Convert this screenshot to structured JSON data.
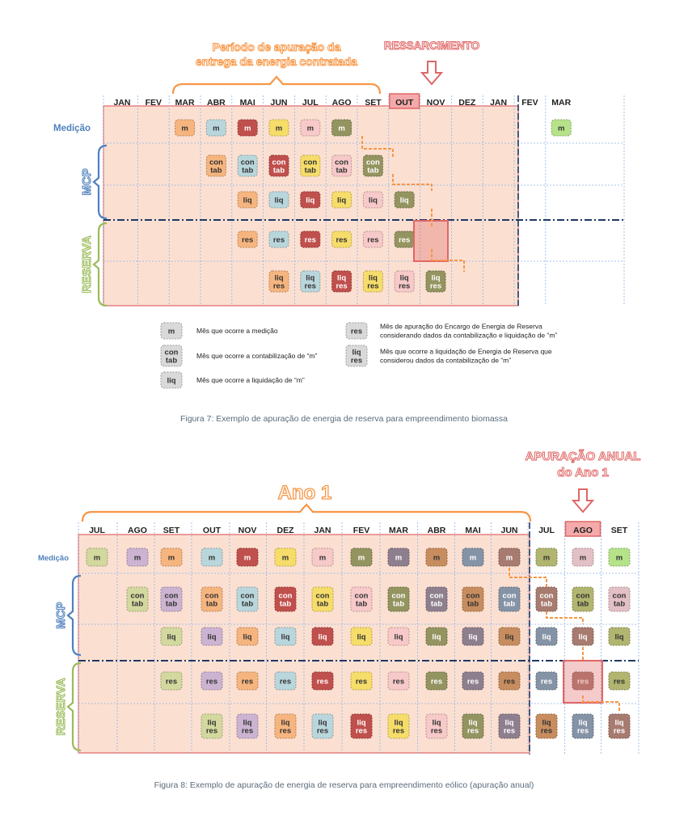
{
  "figure7": {
    "top_title": [
      "Período de apuração da",
      "entrega da energia contratada"
    ],
    "highlight_label": "RESSARCIMENTO",
    "months": [
      "JAN",
      "FEV",
      "MAR",
      "ABR",
      "MAI",
      "JUN",
      "JUL",
      "AGO",
      "SET",
      "OUT",
      "NOV",
      "DEZ",
      "JAN",
      "FEV",
      "MAR"
    ],
    "highlight_month_index": 9,
    "row_labels": {
      "medicao": "Medição",
      "mcp": "MCP",
      "reserva": "RESERVA"
    },
    "rows": {
      "m": [
        null,
        null,
        [
          "m",
          "#f6b57f"
        ],
        [
          "m",
          "#b9d6dc"
        ],
        [
          "m",
          "#c0504d"
        ],
        [
          "m",
          "#f6dd6a"
        ],
        [
          "m",
          "#f7c9c9"
        ],
        [
          "m",
          "#939460"
        ],
        null,
        null,
        null,
        null,
        null,
        null,
        [
          "m",
          "#b6e38a"
        ]
      ],
      "con": [
        null,
        null,
        null,
        [
          "con tab",
          "#f6b57f"
        ],
        [
          "con tab",
          "#b9d6dc"
        ],
        [
          "con tab",
          "#c0504d"
        ],
        [
          "con tab",
          "#f6dd6a"
        ],
        [
          "con tab",
          "#f7c9c9"
        ],
        [
          "con tab",
          "#939460"
        ],
        null,
        null,
        null,
        null,
        null,
        null
      ],
      "liq": [
        null,
        null,
        null,
        null,
        [
          "liq",
          "#f6b57f"
        ],
        [
          "liq",
          "#b9d6dc"
        ],
        [
          "liq",
          "#c0504d"
        ],
        [
          "liq",
          "#f6dd6a"
        ],
        [
          "liq",
          "#f7c9c9"
        ],
        [
          "liq",
          "#939460"
        ],
        null,
        null,
        null,
        null,
        null
      ],
      "res": [
        null,
        null,
        null,
        null,
        [
          "res",
          "#f6b57f"
        ],
        [
          "res",
          "#b9d6dc"
        ],
        [
          "res",
          "#c0504d"
        ],
        [
          "res",
          "#f6dd6a"
        ],
        [
          "res",
          "#f7c9c9"
        ],
        [
          "res",
          "#939460"
        ],
        null,
        null,
        null,
        null,
        null
      ],
      "liqres": [
        null,
        null,
        null,
        null,
        null,
        [
          "liq res",
          "#f6b57f"
        ],
        [
          "liq res",
          "#b9d6dc"
        ],
        [
          "liq res",
          "#c0504d"
        ],
        [
          "liq res",
          "#f6dd6a"
        ],
        [
          "liq res",
          "#f7c9c9"
        ],
        [
          "liq res",
          "#939460"
        ],
        null,
        null,
        null,
        null
      ]
    },
    "legend": [
      {
        "box": "m",
        "text": [
          "Mês que ocorre a medição"
        ]
      },
      {
        "box": "con tab",
        "text": [
          "Mês que ocorre a contabilização de “m”"
        ]
      },
      {
        "box": "liq",
        "text": [
          "Mês que ocorre a liquidação de “m”"
        ]
      },
      {
        "box": "res",
        "text": [
          "Mês  de apuração do Encargo de Energia de Reserva",
          "considerando dados da contabilização e liquidação de “m”"
        ]
      },
      {
        "box": "liq res",
        "text": [
          "Mês  que ocorre a liquidação de Energia de Reserva que",
          "considerou dados da contabilização de “m”"
        ]
      }
    ],
    "caption": "Figura 7: Exemplo de apuração de energia de reserva para empreendimento biomassa"
  },
  "figure8": {
    "top_title": "Ano 1",
    "highlight_label": [
      "APURAÇÃO ANUAL",
      "do Ano 1"
    ],
    "months": [
      "JUL",
      "AGO",
      "SET",
      "OUT",
      "NOV",
      "DEZ",
      "JAN",
      "FEV",
      "MAR",
      "ABR",
      "MAI",
      "JUN",
      "JUL",
      "AGO",
      "SET"
    ],
    "highlight_month_index": 13,
    "row_labels": {
      "medicao": "Medição",
      "mcp": "MCP",
      "reserva": "RESERVA"
    },
    "rows": {
      "m": [
        [
          "m",
          "#d3d89e"
        ],
        [
          "m",
          "#ccb3d1"
        ],
        [
          "m",
          "#f6b57f"
        ],
        [
          "m",
          "#b9d6dc"
        ],
        [
          "m",
          "#c0504d"
        ],
        [
          "m",
          "#f6dd6a"
        ],
        [
          "m",
          "#f7c9c9"
        ],
        [
          "m",
          "#939460"
        ],
        [
          "m",
          "#8e7f8e"
        ],
        [
          "m",
          "#c78d5f"
        ],
        [
          "m",
          "#8593a6"
        ],
        [
          "m",
          "#a77b70"
        ],
        [
          "m",
          "#b1b56f"
        ],
        [
          "m",
          "#e3c0c6"
        ],
        [
          "m",
          "#b6e38a"
        ]
      ],
      "con": [
        null,
        [
          "con tab",
          "#d3d89e"
        ],
        [
          "con tab",
          "#ccb3d1"
        ],
        [
          "con tab",
          "#f6b57f"
        ],
        [
          "con tab",
          "#b9d6dc"
        ],
        [
          "con tab",
          "#c0504d"
        ],
        [
          "con tab",
          "#f6dd6a"
        ],
        [
          "con tab",
          "#f7c9c9"
        ],
        [
          "con tab",
          "#939460"
        ],
        [
          "con tab",
          "#8e7f8e"
        ],
        [
          "con tab",
          "#c78d5f"
        ],
        [
          "con tab",
          "#8593a6"
        ],
        [
          "con tab",
          "#a77b70"
        ],
        [
          "con tab",
          "#b1b56f"
        ],
        [
          "con tab",
          "#e3c0c6"
        ]
      ],
      "liq": [
        null,
        null,
        [
          "liq",
          "#d3d89e"
        ],
        [
          "liq",
          "#ccb3d1"
        ],
        [
          "liq",
          "#f6b57f"
        ],
        [
          "liq",
          "#b9d6dc"
        ],
        [
          "liq",
          "#c0504d"
        ],
        [
          "liq",
          "#f6dd6a"
        ],
        [
          "liq",
          "#f7c9c9"
        ],
        [
          "liq",
          "#939460"
        ],
        [
          "liq",
          "#8e7f8e"
        ],
        [
          "liq",
          "#c78d5f"
        ],
        [
          "liq",
          "#8593a6"
        ],
        [
          "liq",
          "#a77b70"
        ],
        [
          "liq",
          "#b1b56f"
        ]
      ],
      "res": [
        null,
        null,
        [
          "res",
          "#d3d89e"
        ],
        [
          "res",
          "#ccb3d1"
        ],
        [
          "res",
          "#f6b57f"
        ],
        [
          "res",
          "#b9d6dc"
        ],
        [
          "res",
          "#c0504d"
        ],
        [
          "res",
          "#f6dd6a"
        ],
        [
          "res",
          "#f7c9c9"
        ],
        [
          "res",
          "#939460"
        ],
        [
          "res",
          "#8e7f8e"
        ],
        [
          "res",
          "#c78d5f"
        ],
        [
          "res",
          "#8593a6"
        ],
        [
          "res",
          "#a77b70"
        ],
        [
          "res",
          "#b1b56f"
        ]
      ],
      "liqres": [
        null,
        null,
        null,
        [
          "liq res",
          "#d3d89e"
        ],
        [
          "liq res",
          "#ccb3d1"
        ],
        [
          "liq res",
          "#f6b57f"
        ],
        [
          "liq res",
          "#b9d6dc"
        ],
        [
          "liq res",
          "#c0504d"
        ],
        [
          "liq res",
          "#f6dd6a"
        ],
        [
          "liq res",
          "#f7c9c9"
        ],
        [
          "liq res",
          "#939460"
        ],
        [
          "liq res",
          "#8e7f8e"
        ],
        [
          "liq res",
          "#c78d5f"
        ],
        [
          "liq res",
          "#8593a6"
        ],
        [
          "liq res",
          "#a77b70"
        ]
      ]
    },
    "caption": "Figura 8: Exemplo de apuração de energia de reserva para empreendimento eólico (apuração anual)"
  },
  "colors": {
    "accent_orange": "#f79646",
    "highlight_red": "#e06666",
    "period_fill": "#fbe0d2",
    "row_label_blue": "#4f81bd",
    "row_label_green": "#9bbb59",
    "grid_blue": "#8db3e2",
    "divider": "#1f3864"
  }
}
